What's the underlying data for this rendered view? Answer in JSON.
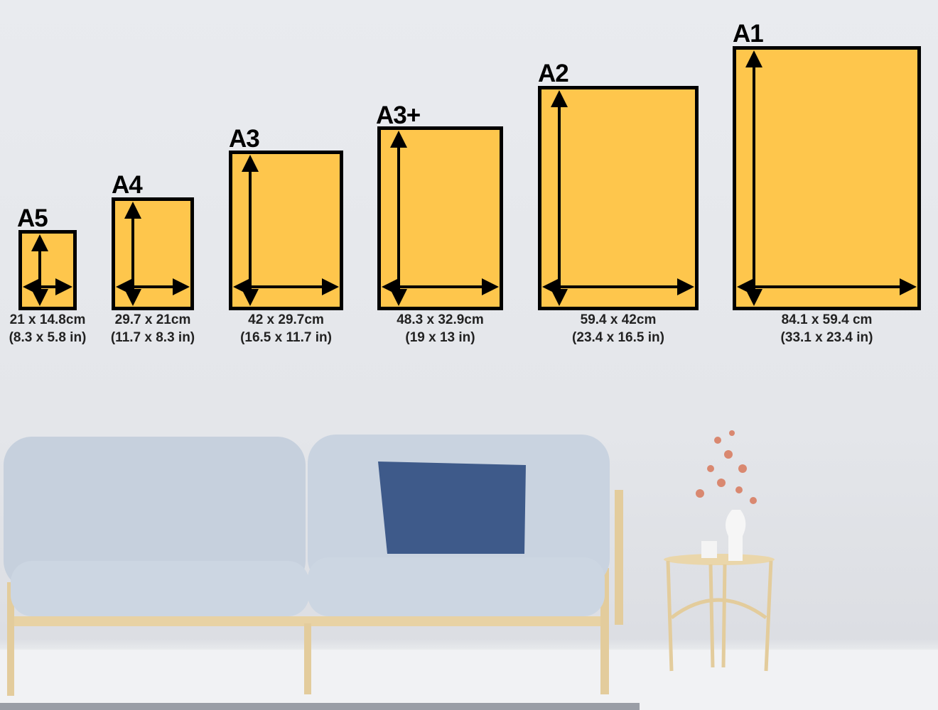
{
  "colors": {
    "frame_fill": "#fec64c",
    "frame_border": "#000000",
    "wall": "#e6e8ec",
    "sofa": "#c9d3e0",
    "cushion": "#3e5a8a",
    "wood": "#e8d2a4"
  },
  "sizes": [
    {
      "name": "A5",
      "cm": "21 x 14.8cm",
      "in": "(8.3 x 5.8 in)"
    },
    {
      "name": "A4",
      "cm": "29.7 x 21cm",
      "in": "(11.7 x 8.3 in)"
    },
    {
      "name": "A3",
      "cm": "42 x 29.7cm",
      "in": "(16.5 x 11.7 in)"
    },
    {
      "name": "A3+",
      "cm": "48.3 x 32.9cm",
      "in": "(19 x 13 in)"
    },
    {
      "name": "A2",
      "cm": "59.4 x 42cm",
      "in": "(23.4 x 16.5 in)"
    },
    {
      "name": "A1",
      "cm": "84.1 x 59.4 cm",
      "in": "(33.1 x 23.4 in)"
    }
  ]
}
